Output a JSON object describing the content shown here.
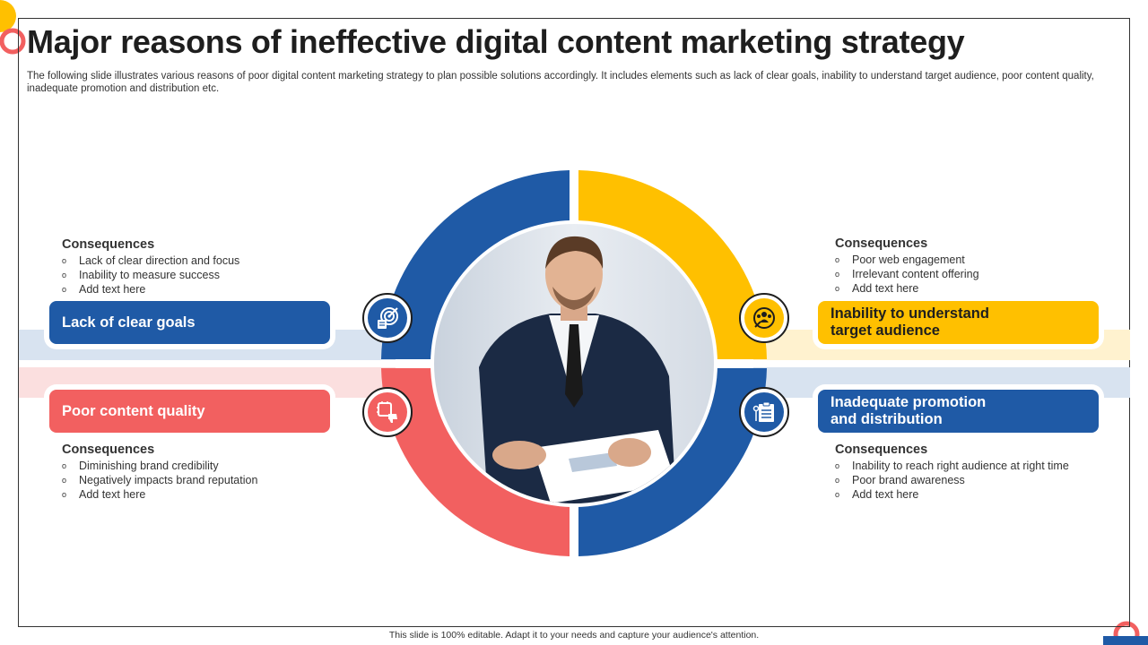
{
  "slide": {
    "title": "Major reasons of ineffective digital content marketing strategy",
    "subtitle": "The following slide illustrates various reasons of poor digital content marketing strategy to plan possible solutions accordingly. It includes elements such as lack of clear goals, inability to understand target audience, poor content quality, inadequate promotion and distribution etc.",
    "footer": "This slide is 100% editable.  Adapt it to your needs and capture your audience's attention."
  },
  "colors": {
    "blue": "#1f5aa6",
    "yellow": "#ffc000",
    "red": "#f26060",
    "dark": "#1e1e1e"
  },
  "reasons": {
    "top_left": {
      "label": "Lack of clear goals",
      "icon": "target-goals-icon",
      "consequences_heading": "Consequences",
      "consequences": [
        "Lack of clear direction and focus",
        "Inability to measure  success",
        "Add text here"
      ]
    },
    "top_right": {
      "label": "Inability to understand target audience",
      "icon": "audience-target-icon",
      "consequences_heading": "Consequences",
      "consequences": [
        "Poor web engagement",
        "Irrelevant  content offering",
        "Add text here"
      ]
    },
    "bottom_left": {
      "label": "Poor content quality",
      "icon": "content-dislike-icon",
      "consequences_heading": "Consequences",
      "consequences": [
        "Diminishing brand credibility",
        "Negatively  impacts brand reputation",
        "Add text here"
      ]
    },
    "bottom_right": {
      "label": "Inadequate promotion and distribution",
      "icon": "promotion-board-icon",
      "consequences_heading": "Consequences",
      "consequences": [
        "Inability to reach right audience at right time",
        "Poor brand awareness",
        "Add text here"
      ]
    }
  },
  "center_image": {
    "icon": "businessman-photo"
  }
}
